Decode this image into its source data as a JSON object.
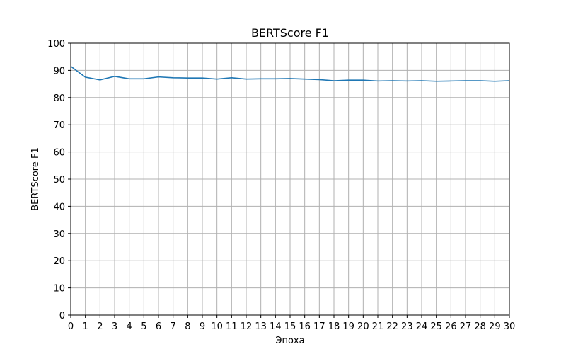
{
  "chart_data": {
    "type": "line",
    "title": "BERTScore F1",
    "xlabel": "Эпоха",
    "ylabel": "BERTScore F1",
    "xlim": [
      0,
      30
    ],
    "ylim": [
      0,
      100
    ],
    "x_ticks": [
      0,
      1,
      2,
      3,
      4,
      5,
      6,
      7,
      8,
      9,
      10,
      11,
      12,
      13,
      14,
      15,
      16,
      17,
      18,
      19,
      20,
      21,
      22,
      23,
      24,
      25,
      26,
      27,
      28,
      29,
      30
    ],
    "y_ticks": [
      0,
      10,
      20,
      30,
      40,
      50,
      60,
      70,
      80,
      90,
      100
    ],
    "grid": true,
    "series": [
      {
        "color": "#1f77b4",
        "x": [
          0,
          1,
          2,
          3,
          4,
          5,
          6,
          7,
          8,
          9,
          10,
          11,
          12,
          13,
          14,
          15,
          16,
          17,
          18,
          19,
          20,
          21,
          22,
          23,
          24,
          25,
          26,
          27,
          28,
          29,
          30
        ],
        "values": [
          91.5,
          87.5,
          86.5,
          87.8,
          86.9,
          86.9,
          87.6,
          87.3,
          87.2,
          87.2,
          86.8,
          87.3,
          86.8,
          86.9,
          86.9,
          87.0,
          86.8,
          86.6,
          86.2,
          86.4,
          86.4,
          86.1,
          86.2,
          86.1,
          86.2,
          86.0,
          86.1,
          86.2,
          86.2,
          86.0,
          86.2
        ]
      }
    ]
  }
}
